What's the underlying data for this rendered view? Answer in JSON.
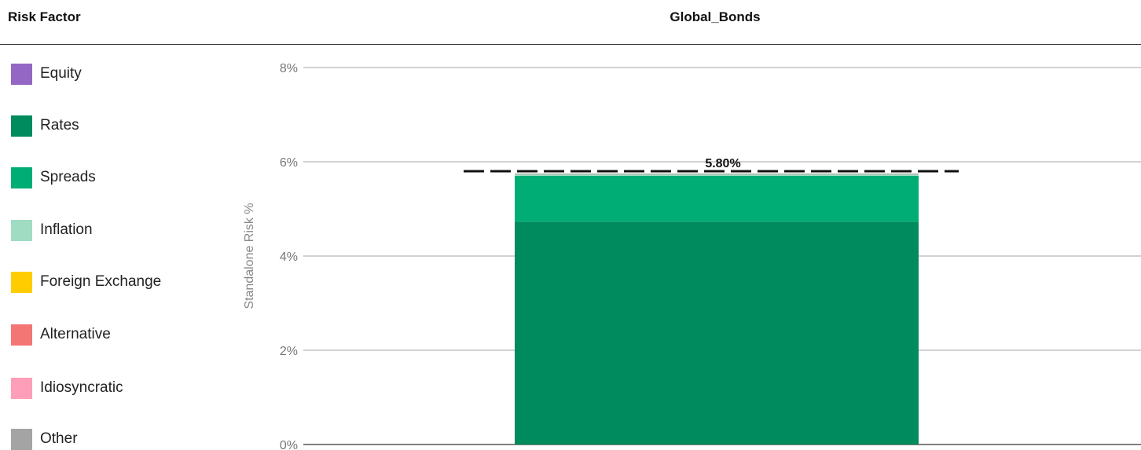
{
  "header": {
    "risk_factor_title": "Risk Factor",
    "column_title": "Global_Bonds"
  },
  "legend": {
    "items": [
      {
        "label": "Equity",
        "color": "#9467c4"
      },
      {
        "label": "Rates",
        "color": "#008b5e"
      },
      {
        "label": "Spreads",
        "color": "#00ad74"
      },
      {
        "label": "Inflation",
        "color": "#9fdcc1"
      },
      {
        "label": "Foreign Exchange",
        "color": "#ffcc00"
      },
      {
        "label": "Alternative",
        "color": "#f37674"
      },
      {
        "label": "Idiosyncratic",
        "color": "#ff9eb8"
      },
      {
        "label": "Other",
        "color": "#a4a4a4"
      }
    ]
  },
  "chart_data": {
    "type": "bar",
    "stacked": true,
    "categories": [
      "Global_Bonds"
    ],
    "series": [
      {
        "name": "Rates",
        "color": "#008b5e",
        "values": [
          4.73
        ]
      },
      {
        "name": "Spreads",
        "color": "#00ad74",
        "values": [
          0.97
        ]
      },
      {
        "name": "Inflation",
        "color": "#9fdcc1",
        "values": [
          0.03
        ]
      },
      {
        "name": "Other",
        "color": "#a4a4a4",
        "values": [
          0.02
        ]
      }
    ],
    "total": {
      "value": 5.8,
      "label": "5.80%",
      "style": "dashed"
    },
    "ylabel": "Standalone Risk %",
    "xlabel": "",
    "ylim": [
      0,
      8
    ],
    "yticks": [
      0,
      2,
      4,
      6,
      8
    ],
    "ytick_labels": [
      "0%",
      "2%",
      "4%",
      "6%",
      "8%"
    ],
    "grid": true
  }
}
